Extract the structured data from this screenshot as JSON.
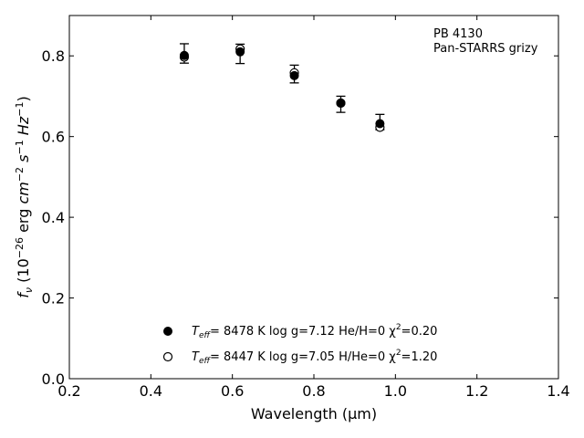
{
  "chart_data": {
    "type": "scatter",
    "annotation": [
      "PB 4130",
      "Pan-STARRS grizy"
    ],
    "xlabel": "Wavelength (μm)",
    "ylabel_html": [
      "f",
      "ν",
      " (10",
      "−26",
      " erg ",
      "cm",
      "−2",
      " ",
      "s",
      "−1",
      " ",
      "Hz",
      "−1",
      ")"
    ],
    "xlim": [
      0.2,
      1.4
    ],
    "ylim": [
      0.0,
      0.9
    ],
    "xticks": [
      0.2,
      0.4,
      0.6,
      0.8,
      1.0,
      1.2,
      1.4
    ],
    "xtick_labels": [
      "0.2",
      "0.4",
      "0.6",
      "0.8",
      "1.0",
      "1.2",
      "1.4"
    ],
    "yticks": [
      0.0,
      0.2,
      0.4,
      0.6,
      0.8
    ],
    "ytick_labels": [
      "0.0",
      "0.2",
      "0.4",
      "0.6",
      "0.8"
    ],
    "grid": false,
    "legend_position": "lower-center",
    "observed": {
      "x": [
        0.482,
        0.619,
        0.752,
        0.866,
        0.962
      ],
      "y": [
        0.806,
        0.805,
        0.755,
        0.68,
        0.636
      ],
      "err": [
        0.024,
        0.024,
        0.022,
        0.02,
        0.019
      ]
    },
    "series": [
      {
        "marker": "filled-circle",
        "legend": [
          "T",
          "eff",
          "=  8478 K  log g=7.12  He/H=0  χ",
          "2",
          "=0.20"
        ],
        "x": [
          0.482,
          0.619,
          0.752,
          0.866,
          0.962
        ],
        "y": [
          0.801,
          0.81,
          0.751,
          0.683,
          0.632
        ]
      },
      {
        "marker": "open-circle",
        "legend": [
          "T",
          "eff",
          "=  8447 K  log g=7.05  H/He=0  χ",
          "2",
          "=1.20"
        ],
        "x": [
          0.482,
          0.619,
          0.752,
          0.866,
          0.962
        ],
        "y": [
          0.797,
          0.817,
          0.758,
          0.683,
          0.623
        ]
      }
    ]
  }
}
